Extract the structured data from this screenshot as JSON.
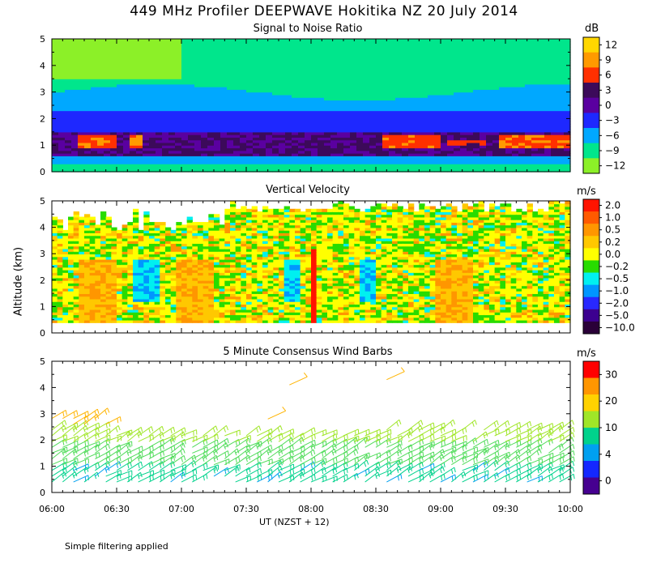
{
  "title": "449 MHz Profiler DEEPWAVE Hokitika NZ 20 July 2014",
  "y_axis_label": "Altitude (km)",
  "x_axis_label": "UT  (NZST + 12)",
  "footnote": "Simple filtering applied",
  "chart_data": [
    {
      "type": "heatmap",
      "title": "Signal to Noise Ratio",
      "unit": "dB",
      "x": [
        "06:00",
        "06:30",
        "07:00",
        "07:30",
        "08:00",
        "08:30",
        "09:00",
        "09:30",
        "10:00"
      ],
      "xlim": [
        0,
        240
      ],
      "ylim": [
        0,
        5
      ],
      "yticks": [
        "0",
        "1",
        "2",
        "3",
        "4",
        "5"
      ],
      "colorbar": {
        "labels": [
          "12",
          "9",
          "6",
          "3",
          "0",
          "−3",
          "−6",
          "−9",
          "−12"
        ],
        "colors": [
          "#ffd700",
          "#ff9a00",
          "#ff3000",
          "#3c0a5a",
          "#5a00a0",
          "#1e28ff",
          "#00a8ff",
          "#00e68c",
          "#8cf028"
        ]
      },
      "profile": [
        {
          "alt_range": [
            0.0,
            0.4
          ],
          "value_db": -9
        },
        {
          "alt_range": [
            0.4,
            0.7
          ],
          "value_db": -6
        },
        {
          "alt_range": [
            0.7,
            1.6
          ],
          "value_db": 3
        },
        {
          "alt_range": [
            1.6,
            2.4
          ],
          "value_db": -3
        },
        {
          "alt_range": [
            2.4,
            3.1
          ],
          "value_db": -6
        },
        {
          "alt_range": [
            3.1,
            5.0
          ],
          "value_db": -9
        }
      ]
    },
    {
      "type": "heatmap",
      "title": "Vertical Velocity",
      "unit": "m/s",
      "x": [
        "06:00",
        "06:30",
        "07:00",
        "07:30",
        "08:00",
        "08:30",
        "09:00",
        "09:30",
        "10:00"
      ],
      "xlim": [
        0,
        240
      ],
      "ylim": [
        0,
        5
      ],
      "yticks": [
        "0",
        "1",
        "2",
        "3",
        "4",
        "5"
      ],
      "colorbar": {
        "labels": [
          "2.0",
          "1.0",
          "0.5",
          "0.2",
          "0.0",
          "−0.2",
          "−0.5",
          "−1.0",
          "−2.0",
          "−5.0",
          "−10.0"
        ],
        "colors": [
          "#ff1400",
          "#ff5a00",
          "#ff9600",
          "#ffc800",
          "#ffff00",
          "#28dc00",
          "#00f0f0",
          "#0096ff",
          "#2828ff",
          "#3c0090",
          "#2a0038"
        ]
      },
      "data_altitude_range": [
        0.4,
        5.0
      ]
    },
    {
      "type": "scatter",
      "title": "5 Minute Consensus Wind Barbs",
      "unit": "m/s",
      "x": [
        "06:00",
        "06:30",
        "07:00",
        "07:30",
        "08:00",
        "08:30",
        "09:00",
        "09:30",
        "10:00"
      ],
      "xlim": [
        0,
        240
      ],
      "ylim": [
        0,
        5
      ],
      "yticks": [
        "0",
        "1",
        "2",
        "3",
        "4",
        "5"
      ],
      "colorbar": {
        "labels": [
          "30",
          "20",
          "10",
          "4",
          "0"
        ],
        "colors": [
          "#ff0000",
          "#ff9600",
          "#ffd200",
          "#a0e628",
          "#00d28c",
          "#00a0f0",
          "#1428ff",
          "#460090"
        ]
      },
      "wind_speed_by_altitude": [
        {
          "alt": 0.5,
          "speed_ms": 6
        },
        {
          "alt": 1.0,
          "speed_ms": 8
        },
        {
          "alt": 1.5,
          "speed_ms": 10
        },
        {
          "alt": 2.0,
          "speed_ms": 13
        },
        {
          "alt": 2.5,
          "speed_ms": 18
        },
        {
          "alt": 3.0,
          "speed_ms": 20
        }
      ]
    }
  ]
}
